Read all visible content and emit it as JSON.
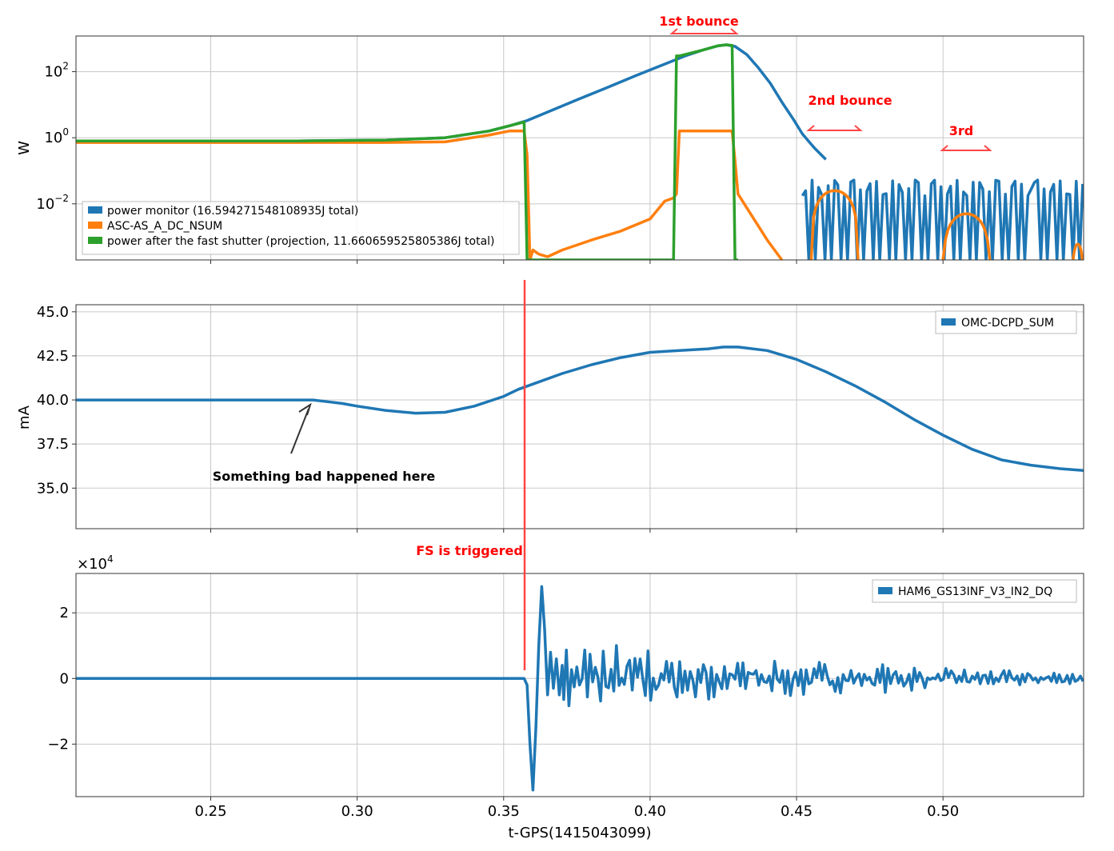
{
  "chart_data": [
    {
      "type": "line",
      "ylabel": "W",
      "yscale": "log",
      "ylim": [
        0.0002,
        1200
      ],
      "xlim": [
        0.204,
        0.548
      ],
      "yticks": [
        0.01,
        1,
        100
      ],
      "ytick_labels": [
        [
          "10",
          "−2"
        ],
        [
          "10",
          "0"
        ],
        [
          "10",
          "2"
        ]
      ],
      "grid": true,
      "legend_position": "lower-left",
      "series": [
        {
          "name": "power monitor (16.594271548108935J total)",
          "color": "#1f77b4",
          "x": [
            0.204,
            0.24,
            0.28,
            0.31,
            0.33,
            0.345,
            0.352,
            0.358,
            0.365,
            0.375,
            0.385,
            0.395,
            0.405,
            0.412,
            0.418,
            0.423,
            0.426,
            0.429,
            0.433,
            0.437,
            0.441,
            0.445,
            0.449,
            0.452,
            0.456,
            0.46
          ],
          "y": [
            0.8,
            0.8,
            0.8,
            0.85,
            1.0,
            1.6,
            2.3,
            3.3,
            6,
            14,
            32,
            75,
            170,
            300,
            450,
            600,
            650,
            580,
            330,
            130,
            45,
            12,
            3.5,
            1.3,
            0.5,
            0.22
          ]
        },
        {
          "name": "ASC-AS_A_DC_NSUM",
          "color": "#ff7f0e",
          "x": [
            0.204,
            0.24,
            0.28,
            0.31,
            0.33,
            0.345,
            0.352,
            0.357,
            0.358,
            0.359,
            0.36,
            0.362,
            0.365,
            0.37,
            0.38,
            0.39,
            0.4,
            0.405,
            0.408,
            0.409,
            0.41,
            0.415,
            0.42,
            0.425,
            0.428,
            0.429,
            0.43,
            0.435,
            0.44,
            0.445
          ],
          "y": [
            0.72,
            0.72,
            0.72,
            0.72,
            0.75,
            1.2,
            1.6,
            1.6,
            0.3,
            0.0002,
            0.0004,
            0.0003,
            0.00025,
            0.0004,
            0.0008,
            0.0015,
            0.0035,
            0.012,
            0.015,
            0.02,
            1.6,
            1.6,
            1.6,
            1.6,
            1.6,
            0.2,
            0.02,
            0.004,
            0.0008,
            0.0002
          ]
        },
        {
          "name": "power after the fast shutter (projection, 11.660659525805386J total)",
          "color": "#2ca02c",
          "x": [
            0.204,
            0.24,
            0.28,
            0.31,
            0.33,
            0.345,
            0.352,
            0.357,
            0.358,
            0.359,
            0.365,
            0.38,
            0.4,
            0.408,
            0.409,
            0.41,
            0.418,
            0.423,
            0.426,
            0.428,
            0.429,
            0.43
          ],
          "y": [
            0.8,
            0.8,
            0.8,
            0.85,
            1.0,
            1.6,
            2.3,
            3.0,
            0.0002,
            0.0002,
            0.0002,
            0.0002,
            0.0002,
            0.0002,
            300,
            300,
            450,
            600,
            650,
            620,
            0.0002,
            0.0002
          ]
        }
      ],
      "annotations": [
        {
          "text": "1st bounce",
          "color": "#ff0000",
          "x_range": [
            0.408,
            0.429
          ]
        },
        {
          "text": "2nd bounce",
          "color": "#ff0000",
          "x_range": [
            0.455,
            0.471
          ]
        },
        {
          "text": "3rd",
          "color": "#ff0000",
          "x_range": [
            0.5,
            0.516
          ]
        }
      ]
    },
    {
      "type": "line",
      "ylabel": "mA",
      "ylim": [
        32.7,
        45.4
      ],
      "xlim": [
        0.204,
        0.548
      ],
      "yticks": [
        35.0,
        37.5,
        40.0,
        42.5,
        45.0
      ],
      "ytick_labels": [
        "35.0",
        "37.5",
        "40.0",
        "42.5",
        "45.0"
      ],
      "grid": true,
      "legend_position": "upper-right",
      "series": [
        {
          "name": "OMC-DCPD_SUM",
          "color": "#1f77b4",
          "x": [
            0.204,
            0.22,
            0.24,
            0.26,
            0.28,
            0.285,
            0.29,
            0.295,
            0.3,
            0.31,
            0.32,
            0.33,
            0.34,
            0.35,
            0.355,
            0.36,
            0.37,
            0.38,
            0.39,
            0.4,
            0.41,
            0.42,
            0.425,
            0.43,
            0.44,
            0.45,
            0.46,
            0.47,
            0.48,
            0.49,
            0.5,
            0.51,
            0.52,
            0.53,
            0.54,
            0.548
          ],
          "y": [
            40.0,
            40.0,
            40.0,
            40.0,
            40.0,
            40.0,
            39.9,
            39.8,
            39.65,
            39.4,
            39.25,
            39.3,
            39.65,
            40.2,
            40.6,
            40.9,
            41.5,
            42.0,
            42.4,
            42.7,
            42.8,
            42.9,
            43.0,
            43.0,
            42.8,
            42.3,
            41.6,
            40.8,
            39.9,
            38.9,
            38.0,
            37.2,
            36.6,
            36.3,
            36.1,
            36.0
          ]
        }
      ],
      "annotations": [
        {
          "text": "Something bad happened here",
          "color": "#000000",
          "x": 0.285,
          "y": 40.0
        }
      ]
    },
    {
      "type": "line",
      "ylabel": "",
      "ylim": [
        -36000,
        32000
      ],
      "xlim": [
        0.204,
        0.548
      ],
      "yticks": [
        -20000,
        0,
        20000
      ],
      "ytick_labels": [
        "−2",
        "0",
        "2"
      ],
      "scale_label": "×10",
      "scale_exponent": "4",
      "grid": true,
      "legend_position": "upper-right",
      "xticks": [
        0.25,
        0.3,
        0.35,
        0.4,
        0.45,
        0.5
      ],
      "xtick_labels": [
        "0.25",
        "0.30",
        "0.35",
        "0.40",
        "0.45",
        "0.50"
      ],
      "xlabel": "t-GPS(1415043099)",
      "series": [
        {
          "name": "HAM6_GS13INF_V3_IN2_DQ",
          "color": "#1f77b4",
          "x": [
            0.204,
            0.3,
            0.357,
            0.358,
            0.359,
            0.36,
            0.361,
            0.362,
            0.363,
            0.364,
            0.365,
            0.366,
            0.367,
            0.368,
            0.369,
            0.37
          ],
          "y": [
            0,
            0,
            0,
            -2000,
            -20000,
            -34000,
            -15000,
            10000,
            28000,
            15000,
            -5000,
            8000,
            -3000,
            6000,
            -5000,
            4000
          ]
        }
      ],
      "noise_amplitude_at_x": {
        "x": [
          0.37,
          0.4,
          0.45,
          0.5,
          0.548
        ],
        "amp": [
          11000,
          8500,
          5000,
          3000,
          1500
        ]
      },
      "annotations": [
        {
          "text": "FS is triggered",
          "color": "#ff0000",
          "x": 0.358
        }
      ]
    }
  ]
}
